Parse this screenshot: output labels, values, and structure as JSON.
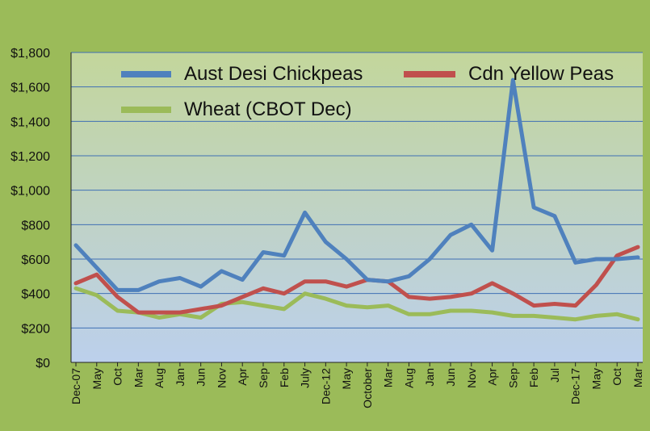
{
  "chart_data": {
    "type": "line",
    "x": [
      "Dec-07",
      "May",
      "Oct",
      "Mar",
      "Aug",
      "Jan",
      "Jun",
      "Nov",
      "Apr",
      "Sep",
      "Feb",
      "July",
      "Dec-12",
      "May",
      "October",
      "Mar",
      "Aug",
      "Jan",
      "Jun",
      "Nov",
      "Apr",
      "Sep",
      "Feb",
      "Jul",
      "Dec-17",
      "May",
      "Oct",
      "Mar"
    ],
    "ylim": [
      0,
      1800
    ],
    "yticks": [
      "$0",
      "$200",
      "$400",
      "$600",
      "$800",
      "$1,000",
      "$1,200",
      "$1,400",
      "$1,600",
      "$1,800"
    ],
    "grid": true,
    "legend_position": "top",
    "plot_background": [
      "#c3d69b",
      "#bcd0ec"
    ],
    "series": [
      {
        "name": "Aust Desi Chickpeas",
        "color": "#4f81bd",
        "values": [
          680,
          550,
          420,
          420,
          470,
          490,
          440,
          530,
          480,
          640,
          620,
          870,
          700,
          600,
          480,
          470,
          500,
          600,
          740,
          800,
          650,
          1640,
          900,
          850,
          580,
          600,
          600,
          610
        ]
      },
      {
        "name": "Cdn Yellow Peas",
        "color": "#c0504d",
        "values": [
          460,
          510,
          380,
          290,
          290,
          290,
          310,
          330,
          380,
          430,
          400,
          470,
          470,
          440,
          480,
          470,
          380,
          370,
          380,
          400,
          460,
          400,
          330,
          340,
          330,
          450,
          620,
          670
        ]
      },
      {
        "name": "Wheat (CBOT Dec)",
        "color": "#9bbb59",
        "values": [
          430,
          390,
          300,
          290,
          260,
          280,
          260,
          340,
          350,
          330,
          310,
          400,
          370,
          330,
          320,
          330,
          280,
          280,
          300,
          300,
          290,
          270,
          270,
          260,
          250,
          270,
          280,
          250
        ]
      }
    ]
  }
}
